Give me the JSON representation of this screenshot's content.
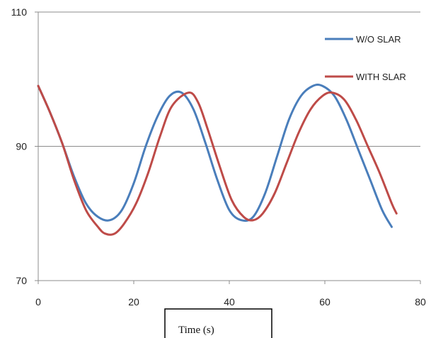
{
  "chart_data": {
    "type": "line",
    "title": "",
    "xlabel": "Time (s)",
    "ylabel": "",
    "xlim": [
      0,
      80
    ],
    "ylim": [
      70,
      110
    ],
    "xticks": [
      0,
      20,
      40,
      60,
      80
    ],
    "yticks": [
      70,
      90,
      110
    ],
    "grid": "horizontal",
    "legend_position": "top-right",
    "series": [
      {
        "name": "W/O SLAR",
        "color": "#4a7ebb",
        "x": [
          0,
          2.5,
          5,
          7.5,
          10,
          12.5,
          15,
          17.5,
          20,
          22.5,
          25,
          27.5,
          30,
          32.5,
          35,
          37.5,
          40,
          42.5,
          45,
          47.5,
          50,
          52.5,
          55,
          57.5,
          59.5,
          62,
          64.5,
          67,
          69.5,
          72,
          74
        ],
        "y": [
          99,
          95,
          90.5,
          85.5,
          81.5,
          79.5,
          79,
          80.5,
          84.5,
          90,
          94.5,
          97.5,
          98,
          95.5,
          90.5,
          85,
          80.5,
          79,
          79.5,
          83,
          88.5,
          94,
          97.5,
          99,
          99,
          97.5,
          94,
          89.5,
          85,
          80.5,
          78
        ]
      },
      {
        "name": "WITH SLAR",
        "color": "#be4b48",
        "x": [
          0,
          2.5,
          5,
          7.5,
          10,
          12.5,
          14,
          16,
          18,
          20.5,
          23,
          25.5,
          28,
          31.5,
          33.5,
          35.5,
          38,
          40.5,
          43,
          45,
          47,
          49.5,
          52,
          54.5,
          57,
          59.5,
          61.5,
          64,
          66.5,
          69,
          71.5,
          74,
          75
        ],
        "y": [
          99,
          95,
          90.5,
          85,
          80.5,
          78,
          77,
          77,
          78.5,
          81.5,
          86,
          91.5,
          96,
          98,
          96.5,
          92.5,
          87,
          82,
          79.5,
          79,
          80,
          83,
          87.5,
          92,
          95.5,
          97.5,
          98,
          97,
          94,
          90,
          86,
          81.5,
          80
        ]
      }
    ]
  }
}
